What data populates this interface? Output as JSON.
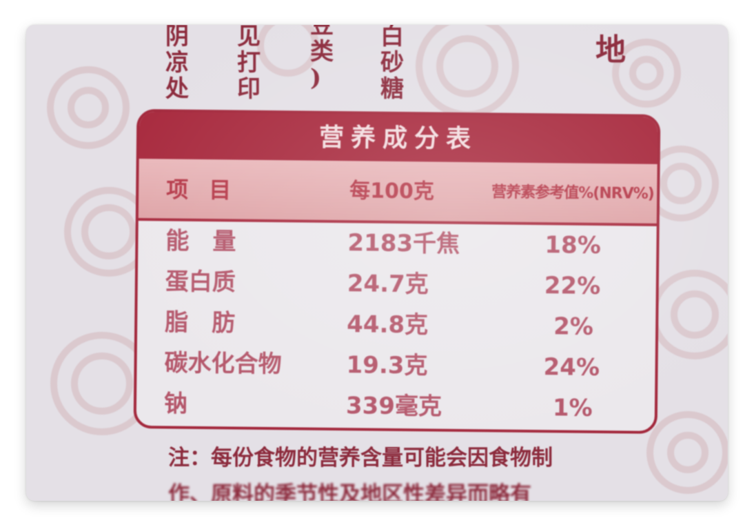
{
  "top_columns": [
    [
      "阴",
      "凉",
      "处"
    ],
    [
      "见",
      "打",
      "印"
    ],
    [
      "豆",
      "类",
      ")"
    ],
    [
      "白",
      "砂",
      "糖"
    ]
  ],
  "corner_text": "地",
  "table": {
    "title": "营养成分表",
    "headers": {
      "item": "项目",
      "per100": "每100克",
      "nrv": "营养素参考值%(NRV%)"
    },
    "rows": [
      {
        "item": "能　量",
        "per100": "2183千焦",
        "nrv": "18%"
      },
      {
        "item": "蛋白质",
        "per100": "24.7克",
        "nrv": "22%"
      },
      {
        "item": "脂　肪",
        "per100": "44.8克",
        "nrv": "2%"
      },
      {
        "item": "碳水化合物",
        "per100": "19.3克",
        "nrv": "24%"
      },
      {
        "item": "钠",
        "per100": "339毫克",
        "nrv": "1%"
      }
    ]
  },
  "note": {
    "line1": "注：每份食物的营养含量可能会因食物制",
    "line2": "作、原料的季节性及地区性差异而略有"
  },
  "colors": {
    "brand_red": "#a82a3e",
    "header_pink": "#e9b8bb",
    "text_red": "#b4566a",
    "background": "#e4e0e6"
  }
}
